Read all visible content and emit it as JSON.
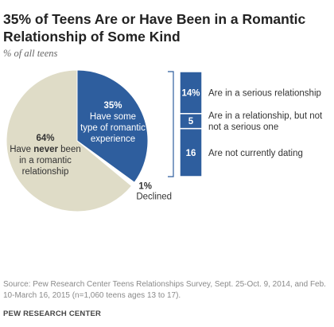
{
  "chart_data": {
    "type": "pie",
    "title_line1": "35% of Teens Are or Have Been in a Romantic",
    "title_line2": "Relationship of Some Kind",
    "subtitle": "% of all teens",
    "slices": [
      {
        "value": 35,
        "pct_label": "35%",
        "lines": [
          "Have some",
          "type of romantic",
          "experience"
        ],
        "color": "#2e5e9e",
        "text_color": "#ffffff"
      },
      {
        "value": 1,
        "pct_label": "1%",
        "lines": [
          "Declined"
        ],
        "color": "#ffffff",
        "text_color": "#333333"
      },
      {
        "value": 64,
        "pct_label": "64%",
        "lines": [
          "Have ",
          "never",
          " been",
          "in a romantic",
          "relationship"
        ],
        "color": "#dfdcc7",
        "text_color": "#333333"
      }
    ],
    "breakdown": {
      "values": [
        14,
        5,
        16
      ],
      "value_labels": [
        "14%",
        "5",
        "16"
      ],
      "labels": [
        [
          "Are in a serious relationship"
        ],
        [
          "Are in a relationship, but not",
          "not a serious one"
        ],
        [
          "Are not currently dating"
        ]
      ],
      "color": "#2e5e9e"
    }
  },
  "source_text": "Source: Pew Research Center Teens Relationships Survey, Sept. 25-Oct. 9, 2014, and Feb. 10-March 16, 2015 (n=1,060 teens ages 13 to 17).",
  "footer": "PEW RESEARCH CENTER"
}
